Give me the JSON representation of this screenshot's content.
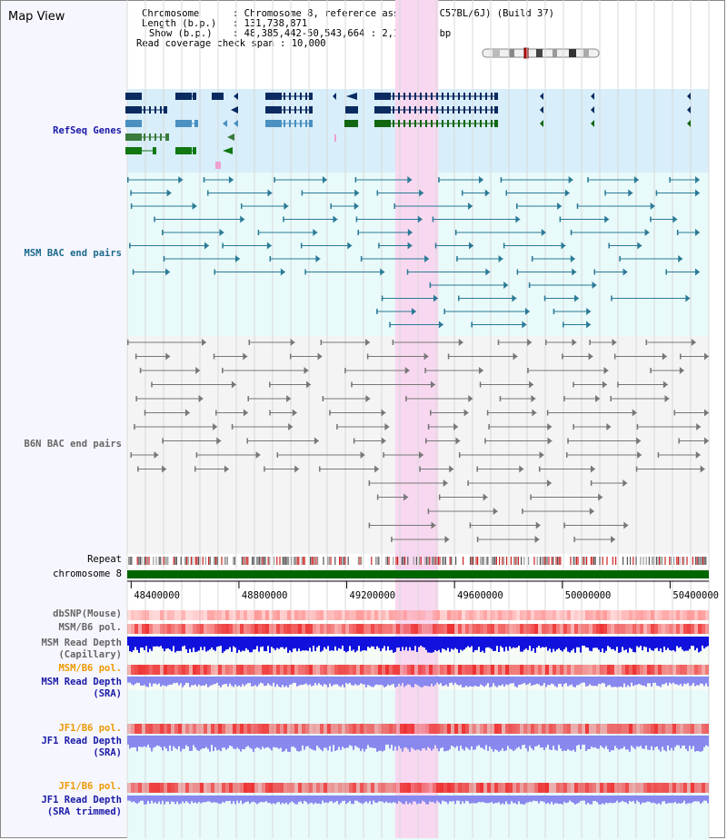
{
  "title": "Map View",
  "header": {
    "chromosome_key": "Chromosome",
    "chromosome_val": ": Chromosome 8, reference assembly (C57BL/6J) (Build 37)",
    "length_key": "Length (b.p.)",
    "length_val": ": 131,738,871",
    "show_key": "Show (b.p.)",
    "show_val": ": 48,385,442-50,543,664 : 2,158,223 bp",
    "coverage_key": "Read coverage check span",
    "coverage_val": ": 10,000"
  },
  "tracks": {
    "refseq": "RefSeq Genes",
    "msm_bac": "MSM BAC end pairs",
    "b6n_bac": "B6N BAC end pairs",
    "repeat": "Repeat",
    "chromosome": "chromosome 8",
    "dbsnp": "dbSNP(Mouse)",
    "msm_b6_pol": "MSM/B6 pol.",
    "msm_depth_cap_1": "MSM Read Depth",
    "msm_depth_cap_2": "(Capillary)",
    "msm_b6_pol2": "MSM/B6 pol.",
    "msm_depth_sra_1": "MSM Read Depth",
    "msm_depth_sra_2": "(SRA)",
    "jf1_pol": "JF1/B6 pol.",
    "jf1_depth_1": "JF1 Read Depth",
    "jf1_depth_2": "(SRA)",
    "jf1_pol2": "JF1/B6 pol.",
    "jf1_trim_1": "JF1 Read Depth",
    "jf1_trim_2": "(SRA trimmed)"
  },
  "ruler": {
    "ticks": [
      "48400000",
      "48800000",
      "49200000",
      "49600000",
      "50000000",
      "50400000"
    ],
    "tick_values": [
      48400000,
      48800000,
      49200000,
      49600000,
      50000000,
      50400000
    ],
    "range": [
      48385442,
      50543664
    ]
  },
  "highlight": {
    "start": 49380000,
    "end": 49540000
  },
  "colors": {
    "refseq_bg": "#d8eefa",
    "msm_bg": "#e8fafa",
    "b6n_bg": "#f4f4f4",
    "highlight": "#f8d8f0",
    "chrom_bar": "#006600",
    "snp": "#ff9999",
    "pol": "#ee3333",
    "depth_cap": "#1111dd",
    "depth_sra": "#8888ee"
  }
}
